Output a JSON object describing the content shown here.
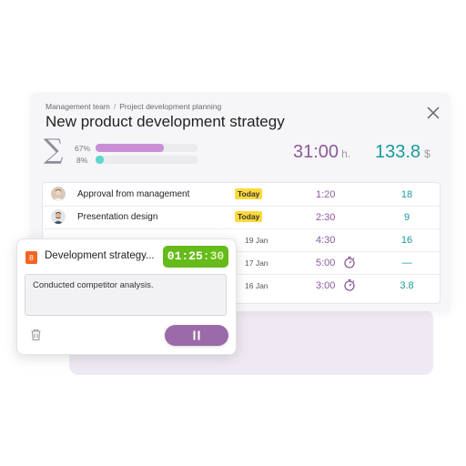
{
  "breadcrumb": {
    "parent": "Management team",
    "separator": "/",
    "current": "Project development planning"
  },
  "title": "New product development strategy",
  "summary": {
    "progress": [
      {
        "label": "67%",
        "value": 0.67,
        "color": "#c98fd6"
      },
      {
        "label": "8%",
        "value": 0.08,
        "color": "#5fd6d0"
      }
    ],
    "hours_value": "31:00",
    "hours_unit": "h.",
    "money_value": "133.8",
    "money_unit": "$"
  },
  "rows": [
    {
      "label": "Approval from management",
      "badge": "Today",
      "date": "",
      "time": "1:20",
      "amount": "18",
      "has_timer_icon": false
    },
    {
      "label": "Presentation design",
      "badge": "Today",
      "date": "",
      "time": "2:30",
      "amount": "9",
      "has_timer_icon": false
    },
    {
      "label": "",
      "badge": "",
      "date": "19 Jan",
      "time": "4:30",
      "amount": "16",
      "has_timer_icon": false
    },
    {
      "label": "",
      "badge": "",
      "date": "17 Jan",
      "time": "5:00",
      "amount": "—",
      "has_timer_icon": true
    },
    {
      "label": "",
      "badge": "",
      "date": "16 Jan",
      "time": "3:00",
      "amount": "3.8",
      "has_timer_icon": true
    }
  ],
  "timer_card": {
    "task_number": "8",
    "task_title": "Development strategy...",
    "timer_main": "01:25",
    "timer_seconds": ":30",
    "note": "Conducted competitor analysis."
  },
  "colors": {
    "accent_purple": "#9b6aa8",
    "accent_teal": "#1a9a9a",
    "timer_green": "#66bb1a",
    "badge_yellow": "#ffd93b",
    "task_orange": "#f26522"
  },
  "icons": {
    "close": "close-icon",
    "sum": "sigma-icon",
    "stopwatch": "stopwatch-icon",
    "trash": "trash-icon",
    "pause": "pause-icon"
  }
}
